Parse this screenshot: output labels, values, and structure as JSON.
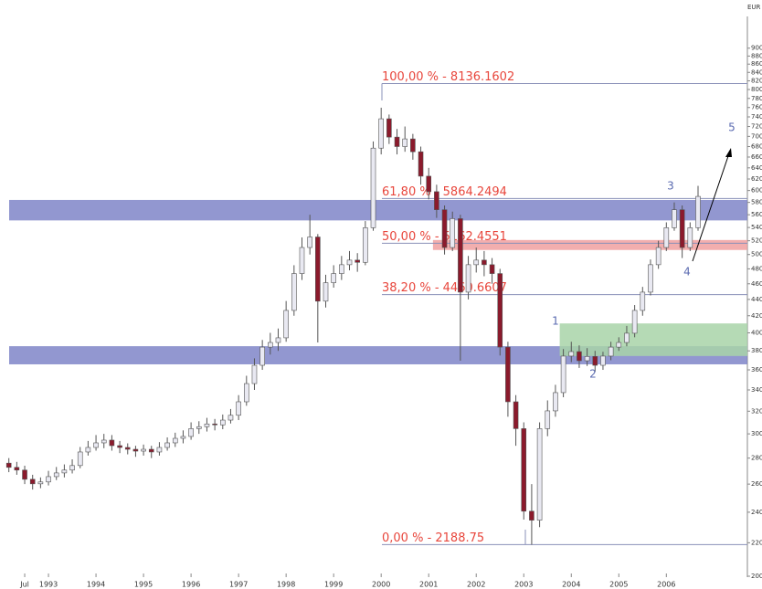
{
  "chart_data": {
    "type": "candlestick",
    "currency": "EUR",
    "log_scale": true,
    "ylim": [
      2000,
      9800
    ],
    "yticks": [
      2000,
      2200,
      2400,
      2600,
      2800,
      3000,
      3200,
      3400,
      3600,
      3800,
      4000,
      4200,
      4400,
      4600,
      4800,
      5000,
      5200,
      5400,
      5600,
      5800,
      6000,
      6200,
      6400,
      6600,
      6800,
      7000,
      7200,
      7400,
      7600,
      7800,
      8000,
      8200,
      8400,
      8600,
      8800,
      9000
    ],
    "categories": [
      null,
      null,
      "Jul",
      null,
      null,
      "1993",
      null,
      null,
      null,
      null,
      null,
      "1994",
      null,
      null,
      null,
      null,
      null,
      "1995",
      null,
      null,
      null,
      null,
      null,
      "1996",
      null,
      null,
      null,
      null,
      null,
      "1997",
      null,
      null,
      null,
      null,
      null,
      "1998",
      null,
      null,
      null,
      null,
      null,
      "1999",
      null,
      null,
      null,
      null,
      null,
      "2000",
      null,
      null,
      null,
      null,
      null,
      "2001",
      null,
      null,
      null,
      null,
      null,
      "2002",
      null,
      null,
      null,
      null,
      null,
      "2003",
      null,
      null,
      null,
      null,
      null,
      "2004",
      null,
      null,
      null,
      null,
      null,
      "2005",
      null,
      null,
      null,
      null,
      null,
      "2006",
      null,
      null,
      null,
      null
    ],
    "open": [
      2760,
      2727,
      2706,
      2636,
      2602,
      2616,
      2656,
      2684,
      2706,
      2741,
      2849,
      2886,
      2924,
      2947,
      2901,
      2886,
      2871,
      2856,
      2871,
      2849,
      2886,
      2924,
      2962,
      2978,
      3045,
      3062,
      3086,
      3078,
      3120,
      3163,
      3287,
      3462,
      3647,
      3841,
      3892,
      3944,
      4264,
      4736,
      5101,
      5256,
      4378,
      4614,
      4736,
      4857,
      4921,
      4890,
      5397,
      6770,
      7360,
      6986,
      6800,
      6950,
      6700,
      6250,
      5980,
      5680,
      5101,
      5538,
      4492,
      4857,
      4921,
      4857,
      4736,
      3841,
      3287,
      3045,
      2407,
      2346,
      3045,
      3203,
      3374,
      3744,
      3792,
      3695,
      3740,
      3647,
      3744,
      3841,
      3892,
      3996,
      4264,
      4492,
      4857,
      5101,
      5397,
      5680,
      5101,
      5397
    ],
    "high": [
      2800,
      2770,
      2740,
      2670,
      2650,
      2700,
      2730,
      2750,
      2790,
      2890,
      2940,
      2990,
      3000,
      2990,
      2940,
      2920,
      2900,
      2910,
      2900,
      2930,
      2970,
      3010,
      3030,
      3100,
      3110,
      3140,
      3130,
      3170,
      3220,
      3350,
      3540,
      3720,
      3920,
      4000,
      4050,
      4380,
      4850,
      5250,
      5600,
      5300,
      4720,
      4850,
      4980,
      5050,
      5020,
      5500,
      6900,
      7596,
      7450,
      7150,
      7200,
      7050,
      6800,
      6400,
      6100,
      5750,
      5650,
      5600,
      4980,
      5100,
      5050,
      4950,
      4800,
      3900,
      3350,
      3100,
      2600,
      3100,
      3300,
      3450,
      3820,
      3900,
      3860,
      3830,
      3800,
      3790,
      3900,
      3950,
      4080,
      4330,
      4560,
      4930,
      5200,
      5480,
      5800,
      5750,
      5480,
      6080
    ],
    "low": [
      2690,
      2670,
      2600,
      2560,
      2570,
      2590,
      2630,
      2650,
      2680,
      2720,
      2820,
      2860,
      2880,
      2860,
      2840,
      2830,
      2810,
      2820,
      2800,
      2820,
      2860,
      2890,
      2920,
      2950,
      3000,
      3020,
      3030,
      3040,
      3090,
      3120,
      3250,
      3400,
      3600,
      3760,
      3800,
      3900,
      4200,
      4650,
      5000,
      3892,
      4300,
      4550,
      4650,
      4780,
      4760,
      4850,
      5350,
      6650,
      6850,
      6650,
      6700,
      6550,
      6100,
      5850,
      5550,
      5000,
      5050,
      3695,
      4400,
      4750,
      4700,
      4600,
      3750,
      3150,
      2900,
      2350,
      2188,
      2300,
      2980,
      3150,
      3330,
      3680,
      3620,
      3640,
      3580,
      3600,
      3700,
      3800,
      3850,
      3950,
      4200,
      4450,
      4800,
      5050,
      5350,
      4950,
      5050,
      5350
    ],
    "close": [
      2727,
      2706,
      2636,
      2602,
      2616,
      2656,
      2684,
      2706,
      2741,
      2849,
      2886,
      2924,
      2947,
      2901,
      2886,
      2871,
      2856,
      2871,
      2849,
      2886,
      2924,
      2962,
      2978,
      3045,
      3062,
      3086,
      3078,
      3120,
      3163,
      3287,
      3462,
      3647,
      3841,
      3892,
      3944,
      4264,
      4736,
      5101,
      5256,
      4378,
      4614,
      4736,
      4857,
      4921,
      4890,
      5397,
      6770,
      7360,
      6986,
      6800,
      6950,
      6700,
      6250,
      5980,
      5680,
      5101,
      5538,
      4492,
      4857,
      4921,
      4857,
      4736,
      3841,
      3287,
      3045,
      2407,
      2346,
      3045,
      3203,
      3374,
      3744,
      3792,
      3695,
      3740,
      3647,
      3744,
      3841,
      3892,
      3996,
      4264,
      4492,
      4857,
      5101,
      5397,
      5680,
      5101,
      5397,
      5900
    ],
    "up_color": "#e9e9f2",
    "down_color": "#8b1a2c",
    "fib_levels": [
      {
        "label": "100,00 % - 8136.1602",
        "value": 8136.1602
      },
      {
        "label": "61,80 % - 5864.2494",
        "value": 5864.2494
      },
      {
        "label": "50,00 % - 5162.4551",
        "value": 5162.4551
      },
      {
        "label": "38,20 % - 4460.6607",
        "value": 4460.6607
      },
      {
        "label": "0,00 % - 2188.75",
        "value": 2188.75
      }
    ],
    "zones": [
      {
        "low": 5510,
        "high": 5841,
        "start": 0,
        "color": "#7f85c8"
      },
      {
        "low": 3657,
        "high": 3851,
        "start": 0,
        "color": "#7f85c8"
      },
      {
        "low": 5065,
        "high": 5211,
        "start": 54,
        "color": "#f0a0a0"
      },
      {
        "low": 3745,
        "high": 4109,
        "start": 70,
        "color": "#a8d4a8"
      }
    ],
    "wave_labels": [
      "1",
      "2",
      "3",
      "4",
      "5"
    ]
  }
}
